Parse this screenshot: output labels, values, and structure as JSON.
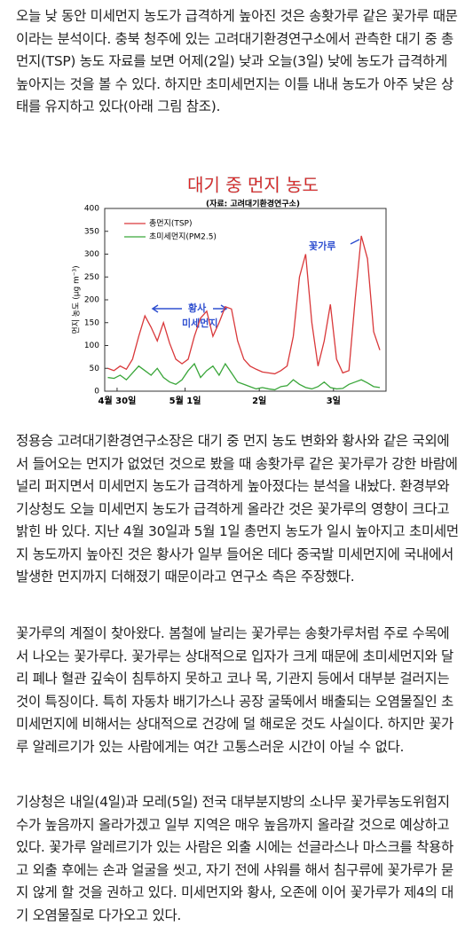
{
  "paragraphs": [
    "오늘 낮 동안 미세먼지 농도가 급격하게 높아진 것은 송홧가루 같은 꽃가루 때문이라는 분석이다. 충북 청주에 있는 고려대기환경연구소에서 관측한 대기 중 총먼지(TSP) 농도 자료를 보면 어제(2일) 낮과 오늘(3일) 낮에 농도가 급격하게 높아지는 것을 볼 수 있다. 하지만 초미세먼지는 이틀 내내 농도가 아주 낮은 상태를 유지하고 있다(아래 그림 참조).",
    "정용승 고려대기환경연구소장은 대기 중 먼지 농도 변화와 황사와 같은 국외에서 들어오는 먼지가 없었던 것으로 봤을 때 송홧가루 같은 꽃가루가 강한 바람에 널리 퍼지면서 미세먼지 농도가 급격하게 높아졌다는 분석을 내놨다. 환경부와 기상청도 오늘 미세먼지 농도가 급격하게 올라간 것은 꽃가루의 영향이 크다고 밝힌 바 있다. 지난 4월 30일과 5월 1일 총먼지 농도가 일시 높아지고 초미세먼지 농도까지 높아진 것은 황사가 일부 들어온 데다 중국발 미세먼지에 국내에서 발생한 먼지까지 더해졌기 때문이라고 연구소 측은 주장했다.",
    "꽃가루의 계절이 찾아왔다. 봄철에 날리는 꽃가루는 송홧가루처럼 주로 수목에서 나오는 꽃가루다. 꽃가루는 상대적으로 입자가 크게 때문에 초미세먼지와 달리 폐나 혈관 깊숙이 침투하지 못하고 코나 목, 기관지 등에서 대부분 걸러지는 것이 특징이다. 특히 자동차 배기가스나 공장 굴뚝에서 배출되는 오염물질인 초미세먼지에 비해서는 상대적으로 건강에 덜 해로운 것도 사실이다. 하지만 꽃가루 알레르기가 있는 사람에게는 여간 고통스러운 시간이 아닐 수 없다.",
    "기상청은 내일(4일)과 모레(5일) 전국 대부분지방의 소나무 꽃가루농도위험지수가 높음까지 올라가겠고 일부 지역은 매우 높음까지 올라갈 것으로 예상하고 있다. 꽃가루 알레르기가 있는 사람은 외출 시에는 선글라스나 마스크를 착용하고 외출 후에는 손과 얼굴을 씻고, 자기 전에 샤워를 해서 침구류에 꽃가루가 묻지 않게 할 것을 권하고 있다. 미세먼지와 황사, 오존에 이어 꽃가루가 제4의 대기 오염물질로 다가오고 있다."
  ],
  "chart_data": {
    "type": "line",
    "title": "대기 중 먼지 농도",
    "subtitle": "(자료: 고려대기환경연구소)",
    "y_label": "먼지 농도 (μg m⁻³)",
    "annotations": [
      "황사",
      "미세먼지",
      "꽃가루"
    ],
    "x": [
      0,
      2,
      4,
      6,
      8,
      10,
      12,
      14,
      16,
      18,
      20,
      22,
      24,
      26,
      28,
      30,
      32,
      34,
      36,
      38,
      40,
      42,
      44,
      46,
      48,
      50,
      52,
      54,
      56,
      58,
      60,
      62,
      64,
      66,
      68,
      70,
      72,
      74,
      76,
      78,
      80,
      82,
      84,
      86,
      88
    ],
    "series": [
      {
        "name": "총먼지(TSP)",
        "color": "#d9383a",
        "values": [
          50,
          45,
          55,
          48,
          70,
          120,
          165,
          140,
          110,
          150,
          105,
          70,
          60,
          70,
          120,
          160,
          175,
          120,
          150,
          185,
          180,
          110,
          70,
          55,
          48,
          42,
          40,
          38,
          45,
          55,
          120,
          250,
          300,
          150,
          55,
          110,
          190,
          70,
          40,
          45,
          200,
          340,
          290,
          130,
          90
        ]
      },
      {
        "name": "초미세먼지(PM2.5)",
        "color": "#3aa63a",
        "values": [
          30,
          28,
          35,
          25,
          40,
          55,
          45,
          35,
          50,
          30,
          20,
          15,
          25,
          45,
          60,
          30,
          45,
          55,
          35,
          60,
          40,
          20,
          15,
          10,
          5,
          8,
          5,
          3,
          10,
          12,
          25,
          15,
          8,
          5,
          10,
          20,
          8,
          5,
          6,
          15,
          20,
          25,
          18,
          10,
          8
        ]
      }
    ],
    "xlim": [
      -1,
      90
    ],
    "xticks": [
      {
        "value": 3,
        "label": "4월 30일"
      },
      {
        "value": 25,
        "label": "5월 1일"
      },
      {
        "value": 49,
        "label": "2일"
      },
      {
        "value": 73,
        "label": "3일"
      }
    ],
    "ylim": [
      0,
      400
    ],
    "yticks": [
      0,
      50,
      100,
      150,
      200,
      250,
      300,
      350,
      400
    ]
  }
}
